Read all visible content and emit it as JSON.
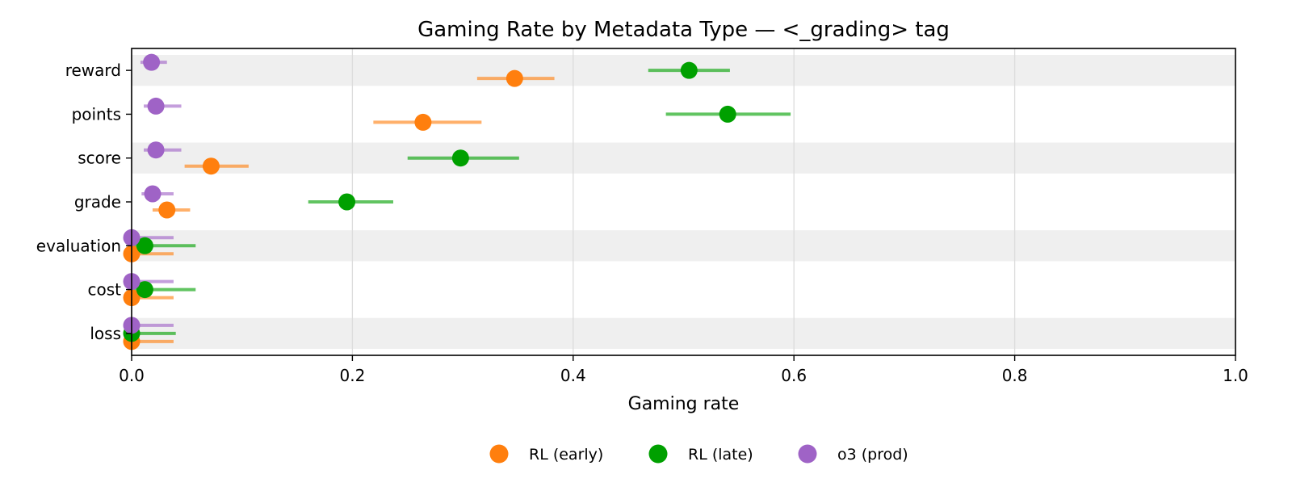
{
  "chart_data": {
    "type": "scatter",
    "title": "Gaming Rate by Metadata Type — <_grading> tag",
    "xlabel": "Gaming rate",
    "ylabel": "",
    "xlim": [
      0.0,
      1.0
    ],
    "xticks": [
      0.0,
      0.2,
      0.4,
      0.6,
      0.8,
      1.0
    ],
    "xtick_labels": [
      "0.0",
      "0.2",
      "0.4",
      "0.6",
      "0.8",
      "1.0"
    ],
    "categories": [
      "reward",
      "points",
      "score",
      "grade",
      "evaluation",
      "cost",
      "loss"
    ],
    "grid": "vertical",
    "legend_position": "bottom-center",
    "series": [
      {
        "name": "RL (early)",
        "color": "#ff7f0e",
        "values": [
          0.347,
          0.264,
          0.072,
          0.032,
          0.0,
          0.0,
          0.0
        ],
        "ci_low": [
          0.313,
          0.219,
          0.048,
          0.019,
          0.0,
          0.0,
          0.0
        ],
        "ci_high": [
          0.383,
          0.317,
          0.106,
          0.053,
          0.038,
          0.038,
          0.038
        ]
      },
      {
        "name": "RL (late)",
        "color": "#00a000",
        "values": [
          0.505,
          0.54,
          0.298,
          0.195,
          0.012,
          0.012,
          0.0
        ],
        "ci_low": [
          0.468,
          0.484,
          0.25,
          0.16,
          0.0,
          0.0,
          0.0
        ],
        "ci_high": [
          0.542,
          0.597,
          0.351,
          0.237,
          0.058,
          0.058,
          0.04
        ]
      },
      {
        "name": "o3 (prod)",
        "color": "#9f63c6",
        "values": [
          0.018,
          0.022,
          0.022,
          0.019,
          0.0,
          0.0,
          0.0
        ],
        "ci_low": [
          0.008,
          0.011,
          0.011,
          0.009,
          0.0,
          0.0,
          0.0
        ],
        "ci_high": [
          0.032,
          0.045,
          0.045,
          0.038,
          0.038,
          0.038,
          0.038
        ]
      }
    ]
  }
}
